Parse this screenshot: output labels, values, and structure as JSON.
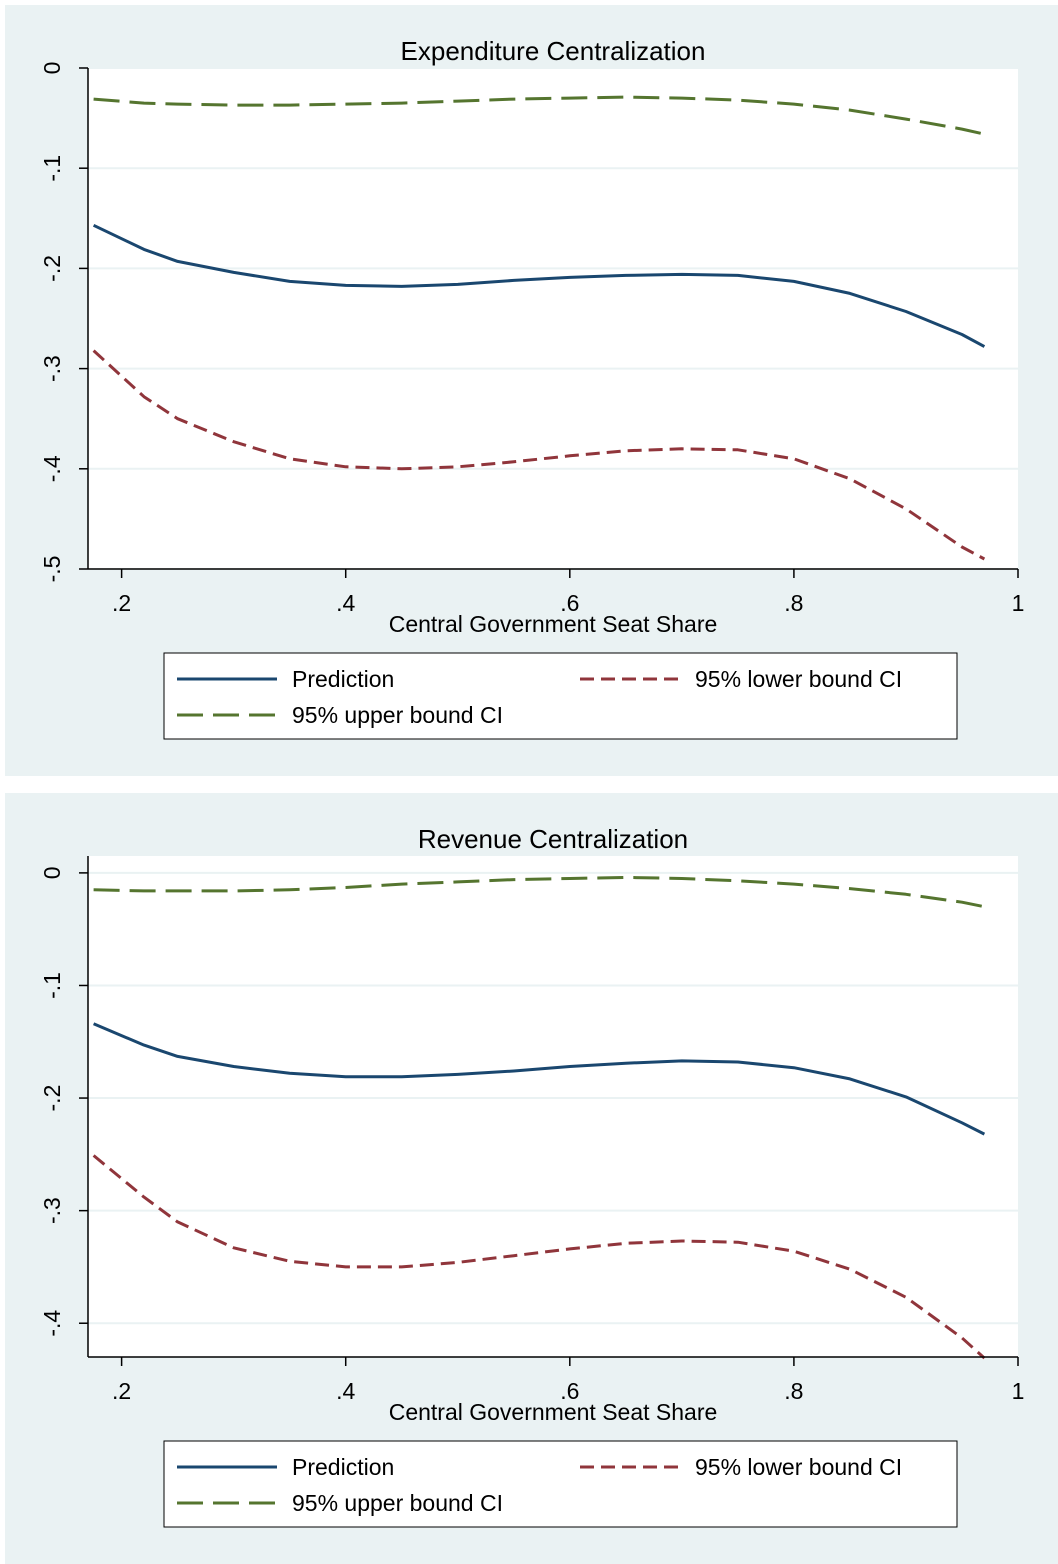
{
  "chart_data": [
    {
      "type": "line",
      "title": "Expenditure Centralization",
      "xlabel": "Central Government Seat Share",
      "ylabel": "",
      "xlim": [
        0.17,
        1.0
      ],
      "ylim": [
        -0.5,
        0.0
      ],
      "x_ticks": [
        ".2",
        ".4",
        ".6",
        ".8",
        "1"
      ],
      "x_tick_values": [
        0.2,
        0.4,
        0.6,
        0.8,
        1.0
      ],
      "y_ticks": [
        "0",
        "-.1",
        "-.2",
        "-.3",
        "-.4",
        "-.5"
      ],
      "y_tick_values": [
        0,
        -0.1,
        -0.2,
        -0.3,
        -0.4,
        -0.5
      ],
      "grid": true,
      "legend_position": "bottom",
      "x": [
        0.175,
        0.22,
        0.25,
        0.3,
        0.35,
        0.4,
        0.45,
        0.5,
        0.55,
        0.6,
        0.65,
        0.7,
        0.75,
        0.8,
        0.85,
        0.9,
        0.95,
        0.97
      ],
      "series": [
        {
          "name": "Prediction",
          "color": "#1a476f",
          "dash": "solid",
          "values": [
            -0.157,
            -0.181,
            -0.193,
            -0.204,
            -0.213,
            -0.217,
            -0.218,
            -0.216,
            -0.212,
            -0.209,
            -0.207,
            -0.206,
            -0.207,
            -0.213,
            -0.225,
            -0.243,
            -0.266,
            -0.278
          ]
        },
        {
          "name": "95% lower bound CI",
          "color": "#90353b",
          "dash": "short",
          "values": [
            -0.282,
            -0.328,
            -0.35,
            -0.373,
            -0.39,
            -0.398,
            -0.4,
            -0.398,
            -0.393,
            -0.387,
            -0.382,
            -0.38,
            -0.381,
            -0.39,
            -0.41,
            -0.44,
            -0.478,
            -0.49
          ]
        },
        {
          "name": "95% upper bound CI",
          "color": "#55752f",
          "dash": "long",
          "values": [
            -0.031,
            -0.035,
            -0.036,
            -0.037,
            -0.037,
            -0.036,
            -0.035,
            -0.033,
            -0.031,
            -0.03,
            -0.029,
            -0.03,
            -0.032,
            -0.036,
            -0.042,
            -0.051,
            -0.061,
            -0.066
          ]
        }
      ]
    },
    {
      "type": "line",
      "title": "Revenue Centralization",
      "xlabel": "Central Government Seat Share",
      "ylabel": "",
      "xlim": [
        0.17,
        1.0
      ],
      "ylim": [
        -0.43,
        0.015
      ],
      "x_ticks": [
        ".2",
        ".4",
        ".6",
        ".8",
        "1"
      ],
      "x_tick_values": [
        0.2,
        0.4,
        0.6,
        0.8,
        1.0
      ],
      "y_ticks": [
        "0",
        "-.1",
        "-.2",
        "-.3",
        "-.4"
      ],
      "y_tick_values": [
        0,
        -0.1,
        -0.2,
        -0.3,
        -0.4
      ],
      "grid": true,
      "legend_position": "bottom",
      "x": [
        0.175,
        0.22,
        0.25,
        0.3,
        0.35,
        0.4,
        0.45,
        0.5,
        0.55,
        0.6,
        0.65,
        0.7,
        0.75,
        0.8,
        0.85,
        0.9,
        0.95,
        0.97
      ],
      "series": [
        {
          "name": "Prediction",
          "color": "#1a476f",
          "dash": "solid",
          "values": [
            -0.134,
            -0.153,
            -0.163,
            -0.172,
            -0.178,
            -0.181,
            -0.181,
            -0.179,
            -0.176,
            -0.172,
            -0.169,
            -0.167,
            -0.168,
            -0.173,
            -0.183,
            -0.199,
            -0.222,
            -0.232
          ]
        },
        {
          "name": "95% lower bound CI",
          "color": "#90353b",
          "dash": "short",
          "values": [
            -0.251,
            -0.288,
            -0.31,
            -0.333,
            -0.345,
            -0.35,
            -0.35,
            -0.346,
            -0.34,
            -0.334,
            -0.329,
            -0.327,
            -0.328,
            -0.336,
            -0.352,
            -0.377,
            -0.413,
            -0.431
          ]
        },
        {
          "name": "95% upper bound CI",
          "color": "#55752f",
          "dash": "long",
          "values": [
            -0.015,
            -0.016,
            -0.016,
            -0.016,
            -0.015,
            -0.013,
            -0.01,
            -0.008,
            -0.006,
            -0.005,
            -0.004,
            -0.005,
            -0.007,
            -0.01,
            -0.014,
            -0.019,
            -0.026,
            -0.03
          ]
        }
      ]
    }
  ]
}
